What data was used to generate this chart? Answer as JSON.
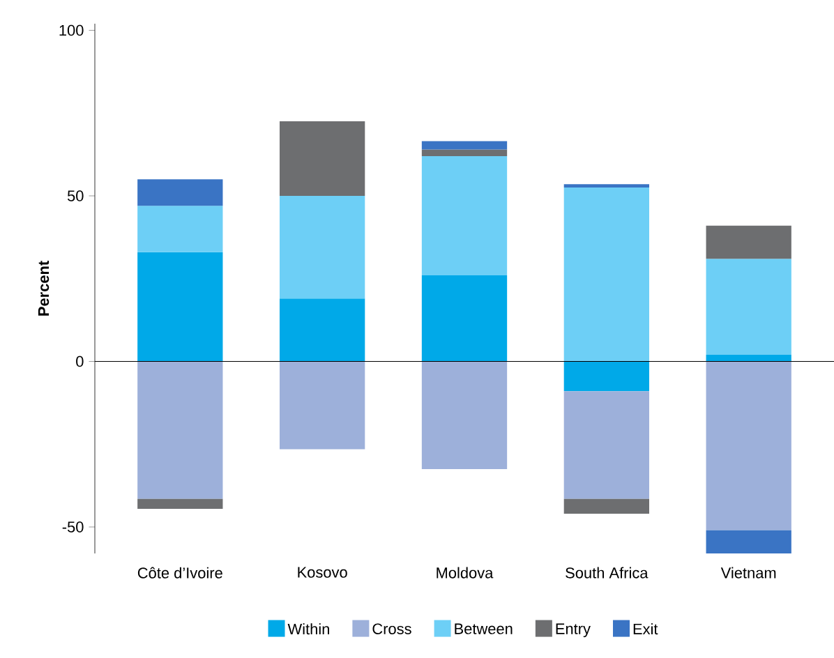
{
  "chart_data": {
    "type": "bar",
    "stacked": true,
    "ylabel": "**Percent**",
    "categories": [
      "Côte d’Ivoire",
      "Kosovo",
      "Moldova",
      "South Africa",
      "Vietnam"
    ],
    "series": [
      {
        "name": "Within",
        "color": "#00a9e8",
        "values": [
          33,
          19,
          26,
          -9,
          2
        ]
      },
      {
        "name": "Cross",
        "color": "#9db0da",
        "values": [
          -41.5,
          -26.5,
          -32.5,
          -32.5,
          -51
        ]
      },
      {
        "name": "Between",
        "color": "#6dcff6",
        "values": [
          14,
          31,
          36,
          52.5,
          29
        ]
      },
      {
        "name": "Entry",
        "color": "#6d6e70",
        "values": [
          -3,
          22.5,
          2,
          -4.5,
          10
        ]
      },
      {
        "name": "Exit",
        "color": "#3a74c4",
        "values": [
          8,
          null,
          2.5,
          1,
          -7
        ]
      }
    ],
    "ylim": [
      -58,
      102
    ],
    "yticks": [
      -50,
      0,
      50,
      100
    ],
    "ref_lines": [
      {
        "axis": "y",
        "value": 0,
        "color": "#000000"
      }
    ],
    "legend": "bottom"
  }
}
